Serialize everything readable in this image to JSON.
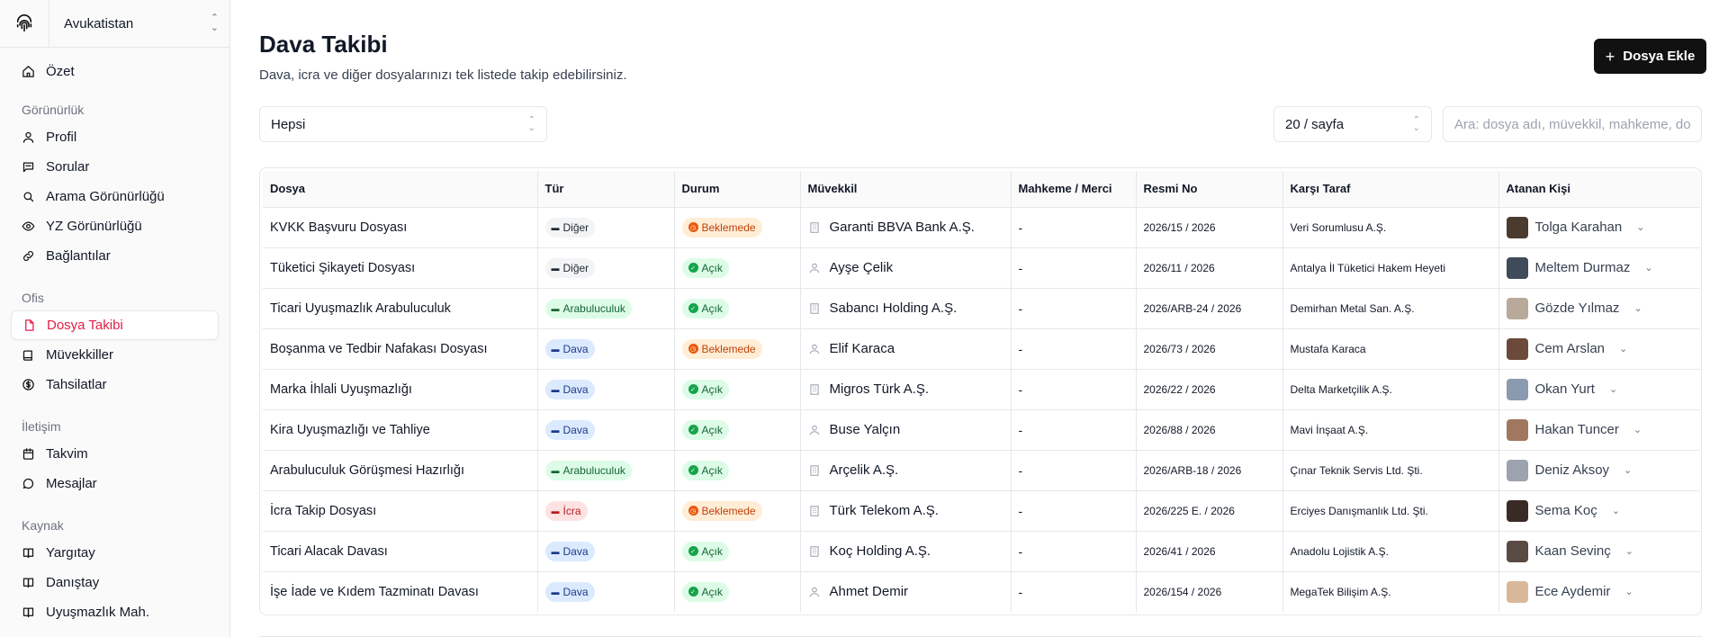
{
  "sidebar": {
    "org_name": "Avukatistan",
    "overview": "Özet",
    "groups": [
      {
        "title": "Görünürlük",
        "items": [
          {
            "label": "Profil",
            "icon": "user-icon"
          },
          {
            "label": "Sorular",
            "icon": "message-icon"
          },
          {
            "label": "Arama Görünürlüğü",
            "icon": "search-icon"
          },
          {
            "label": "YZ Görünürlüğü",
            "icon": "eye-icon"
          },
          {
            "label": "Bağlantılar",
            "icon": "link-icon"
          }
        ]
      },
      {
        "title": "Ofis",
        "items": [
          {
            "label": "Dosya Takibi",
            "icon": "file-icon",
            "active": true
          },
          {
            "label": "Müvekkiller",
            "icon": "users-icon"
          },
          {
            "label": "Tahsilatlar",
            "icon": "dollar-icon"
          }
        ]
      },
      {
        "title": "İletişim",
        "items": [
          {
            "label": "Takvim",
            "icon": "calendar-icon"
          },
          {
            "label": "Mesajlar",
            "icon": "chat-icon"
          }
        ]
      },
      {
        "title": "Kaynak",
        "items": [
          {
            "label": "Yargıtay",
            "icon": "book-icon"
          },
          {
            "label": "Danıştay",
            "icon": "book-icon"
          },
          {
            "label": "Uyuşmazlık Mah.",
            "icon": "book-icon"
          }
        ]
      }
    ]
  },
  "header": {
    "title": "Dava Takibi",
    "subtitle": "Dava, icra ve diğer dosyalarınızı tek listede takip edebilirsiniz.",
    "add_button": "Dosya Ekle"
  },
  "filters": {
    "type_select": "Hepsi",
    "page_size": "20 / sayfa",
    "search_placeholder": "Ara: dosya adı, müvekkil, mahkeme, dosya no"
  },
  "table": {
    "columns": [
      "Dosya",
      "Tür",
      "Durum",
      "Müvekkil",
      "Mahkeme / Merci",
      "Resmi No",
      "Karşı Taraf",
      "Atanan Kişi"
    ],
    "rows": [
      {
        "dosya": "KVKK Başvuru Dosyası",
        "tur": "Diğer",
        "tur_color": "gray",
        "durum": "Beklemede",
        "durum_color": "orange",
        "muvekkil": "Garanti BBVA Bank A.Ş.",
        "muvekkil_type": "company",
        "mahkeme": "-",
        "resmi_no": "2026/15 / 2026",
        "karsi": "Veri Sorumlusu A.Ş.",
        "atanan": "Tolga Karahan",
        "avatar_color": "#4b3b2f"
      },
      {
        "dosya": "Tüketici Şikayeti Dosyası",
        "tur": "Diğer",
        "tur_color": "gray",
        "durum": "Açık",
        "durum_color": "green",
        "muvekkil": "Ayşe Çelik",
        "muvekkil_type": "person",
        "mahkeme": "-",
        "resmi_no": "2026/11 / 2026",
        "karsi": "Antalya İl Tüketici Hakem Heyeti",
        "atanan": "Meltem Durmaz",
        "avatar_color": "#3f4a5a"
      },
      {
        "dosya": "Ticari Uyuşmazlık Arabuluculuk",
        "tur": "Arabuluculuk",
        "tur_color": "green",
        "durum": "Açık",
        "durum_color": "green",
        "muvekkil": "Sabancı Holding A.Ş.",
        "muvekkil_type": "company",
        "mahkeme": "-",
        "resmi_no": "2026/ARB-24 / 2026",
        "karsi": "Demirhan Metal San. A.Ş.",
        "atanan": "Gözde Yılmaz",
        "avatar_color": "#b8a99a"
      },
      {
        "dosya": "Boşanma ve Tedbir Nafakası Dosyası",
        "tur": "Dava",
        "tur_color": "blue",
        "durum": "Beklemede",
        "durum_color": "orange",
        "muvekkil": "Elif Karaca",
        "muvekkil_type": "person",
        "mahkeme": "-",
        "resmi_no": "2026/73 / 2026",
        "karsi": "Mustafa Karaca",
        "atanan": "Cem Arslan",
        "avatar_color": "#6b4a3a"
      },
      {
        "dosya": "Marka İhlali Uyuşmazlığı",
        "tur": "Dava",
        "tur_color": "blue",
        "durum": "Açık",
        "durum_color": "green",
        "muvekkil": "Migros Türk A.Ş.",
        "muvekkil_type": "company",
        "mahkeme": "-",
        "resmi_no": "2026/22 / 2026",
        "karsi": "Delta Marketçilik A.Ş.",
        "atanan": "Okan Yurt",
        "avatar_color": "#8a9bb0"
      },
      {
        "dosya": "Kira Uyuşmazlığı ve Tahliye",
        "tur": "Dava",
        "tur_color": "blue",
        "durum": "Açık",
        "durum_color": "green",
        "muvekkil": "Buse Yalçın",
        "muvekkil_type": "person",
        "mahkeme": "-",
        "resmi_no": "2026/88 / 2026",
        "karsi": "Mavi İnşaat A.Ş.",
        "atanan": "Hakan Tuncer",
        "avatar_color": "#a07860"
      },
      {
        "dosya": "Arabuluculuk Görüşmesi Hazırlığı",
        "tur": "Arabuluculuk",
        "tur_color": "green",
        "durum": "Açık",
        "durum_color": "green",
        "muvekkil": "Arçelik A.Ş.",
        "muvekkil_type": "company",
        "mahkeme": "-",
        "resmi_no": "2026/ARB-18 / 2026",
        "karsi": "Çınar Teknik Servis Ltd. Şti.",
        "atanan": "Deniz Aksoy",
        "avatar_color": "#9ca3af"
      },
      {
        "dosya": "İcra Takip Dosyası",
        "tur": "İcra",
        "tur_color": "red",
        "durum": "Beklemede",
        "durum_color": "orange",
        "muvekkil": "Türk Telekom A.Ş.",
        "muvekkil_type": "company",
        "mahkeme": "-",
        "resmi_no": "2026/225 E. / 2026",
        "karsi": "Erciyes Danışmanlık Ltd. Şti.",
        "atanan": "Sema Koç",
        "avatar_color": "#3a2a25"
      },
      {
        "dosya": "Ticari Alacak Davası",
        "tur": "Dava",
        "tur_color": "blue",
        "durum": "Açık",
        "durum_color": "green",
        "muvekkil": "Koç Holding A.Ş.",
        "muvekkil_type": "company",
        "mahkeme": "-",
        "resmi_no": "2026/41 / 2026",
        "karsi": "Anadolu Lojistik A.Ş.",
        "atanan": "Kaan Sevinç",
        "avatar_color": "#5a4a44"
      },
      {
        "dosya": "İşe İade ve Kıdem Tazminatı Davası",
        "tur": "Dava",
        "tur_color": "blue",
        "durum": "Açık",
        "durum_color": "green",
        "muvekkil": "Ahmet Demir",
        "muvekkil_type": "person",
        "mahkeme": "-",
        "resmi_no": "2026/154 / 2026",
        "karsi": "MegaTek Bilişim A.Ş.",
        "atanan": "Ece Aydemir",
        "avatar_color": "#d9b89a"
      }
    ]
  }
}
